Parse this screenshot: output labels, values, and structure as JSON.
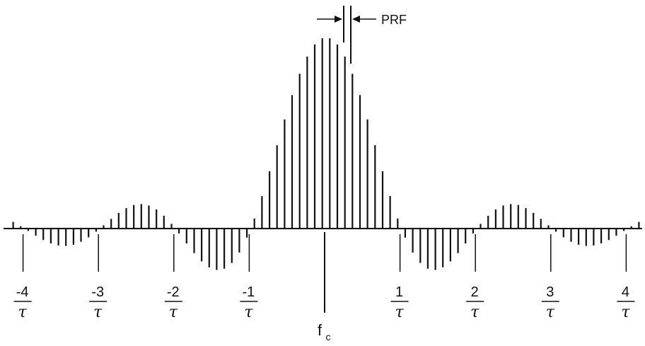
{
  "diagram": {
    "center_label": "f",
    "center_subscript": "c",
    "spacing_label": "PRF",
    "tick_numerators": [
      "-4",
      "-3",
      "-2",
      "-1",
      "1",
      "2",
      "3",
      "4"
    ],
    "tick_denominator": "τ",
    "tick_multiples": [
      -4,
      -3,
      -2,
      -1,
      1,
      2,
      3,
      4
    ],
    "colors": {
      "ink": "#111111",
      "background": "#ffffff"
    },
    "spectrum": {
      "envelope": "sinc",
      "lines_per_zero_crossing": 10,
      "extent_in_zero_crossings": 4.5
    }
  }
}
